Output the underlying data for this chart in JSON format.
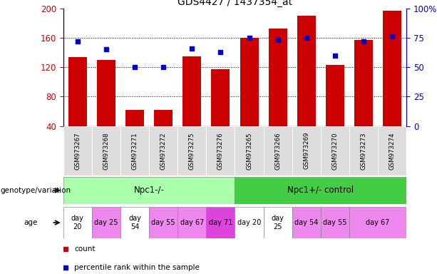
{
  "title": "GDS4427 / 1437354_at",
  "samples": [
    "GSM973267",
    "GSM973268",
    "GSM973271",
    "GSM973272",
    "GSM973275",
    "GSM973276",
    "GSM973265",
    "GSM973266",
    "GSM973269",
    "GSM973270",
    "GSM973273",
    "GSM973274"
  ],
  "counts": [
    134,
    130,
    62,
    62,
    135,
    117,
    160,
    172,
    190,
    123,
    157,
    197
  ],
  "percentile_ranks": [
    72,
    65,
    50,
    50,
    66,
    63,
    75,
    73,
    75,
    60,
    72,
    76
  ],
  "ymin": 40,
  "ymax": 200,
  "y_ticks": [
    40,
    80,
    120,
    160,
    200
  ],
  "right_yticks": [
    0,
    25,
    50,
    75,
    100
  ],
  "bar_color": "#cc0000",
  "dot_color": "#0000cc",
  "tick_label_color_left": "#cc0000",
  "tick_label_color_right": "#0000cc",
  "genotype_groups": [
    {
      "label": "Npc1-/-",
      "start": 0,
      "end": 6,
      "color": "#aaffaa"
    },
    {
      "label": "Npc1+/- control",
      "start": 6,
      "end": 12,
      "color": "#44cc44"
    }
  ],
  "age_spans": [
    {
      "label": "day\n20",
      "start": 0,
      "end": 1,
      "color": "#ffffff"
    },
    {
      "label": "day 25",
      "start": 1,
      "end": 2,
      "color": "#ee88ee"
    },
    {
      "label": "day\n54",
      "start": 2,
      "end": 3,
      "color": "#ffffff"
    },
    {
      "label": "day 55",
      "start": 3,
      "end": 4,
      "color": "#ee88ee"
    },
    {
      "label": "day 67",
      "start": 4,
      "end": 5,
      "color": "#ee88ee"
    },
    {
      "label": "day 71",
      "start": 5,
      "end": 6,
      "color": "#dd44dd"
    },
    {
      "label": "day 20",
      "start": 6,
      "end": 7,
      "color": "#ffffff"
    },
    {
      "label": "day\n25",
      "start": 7,
      "end": 8,
      "color": "#ffffff"
    },
    {
      "label": "day 54",
      "start": 8,
      "end": 9,
      "color": "#ee88ee"
    },
    {
      "label": "day 55",
      "start": 9,
      "end": 10,
      "color": "#ee88ee"
    },
    {
      "label": "day 67",
      "start": 10,
      "end": 12,
      "color": "#ee88ee"
    }
  ],
  "legend_items": [
    {
      "color": "#cc0000",
      "label": "count"
    },
    {
      "color": "#0000cc",
      "label": "percentile rank within the sample"
    }
  ]
}
